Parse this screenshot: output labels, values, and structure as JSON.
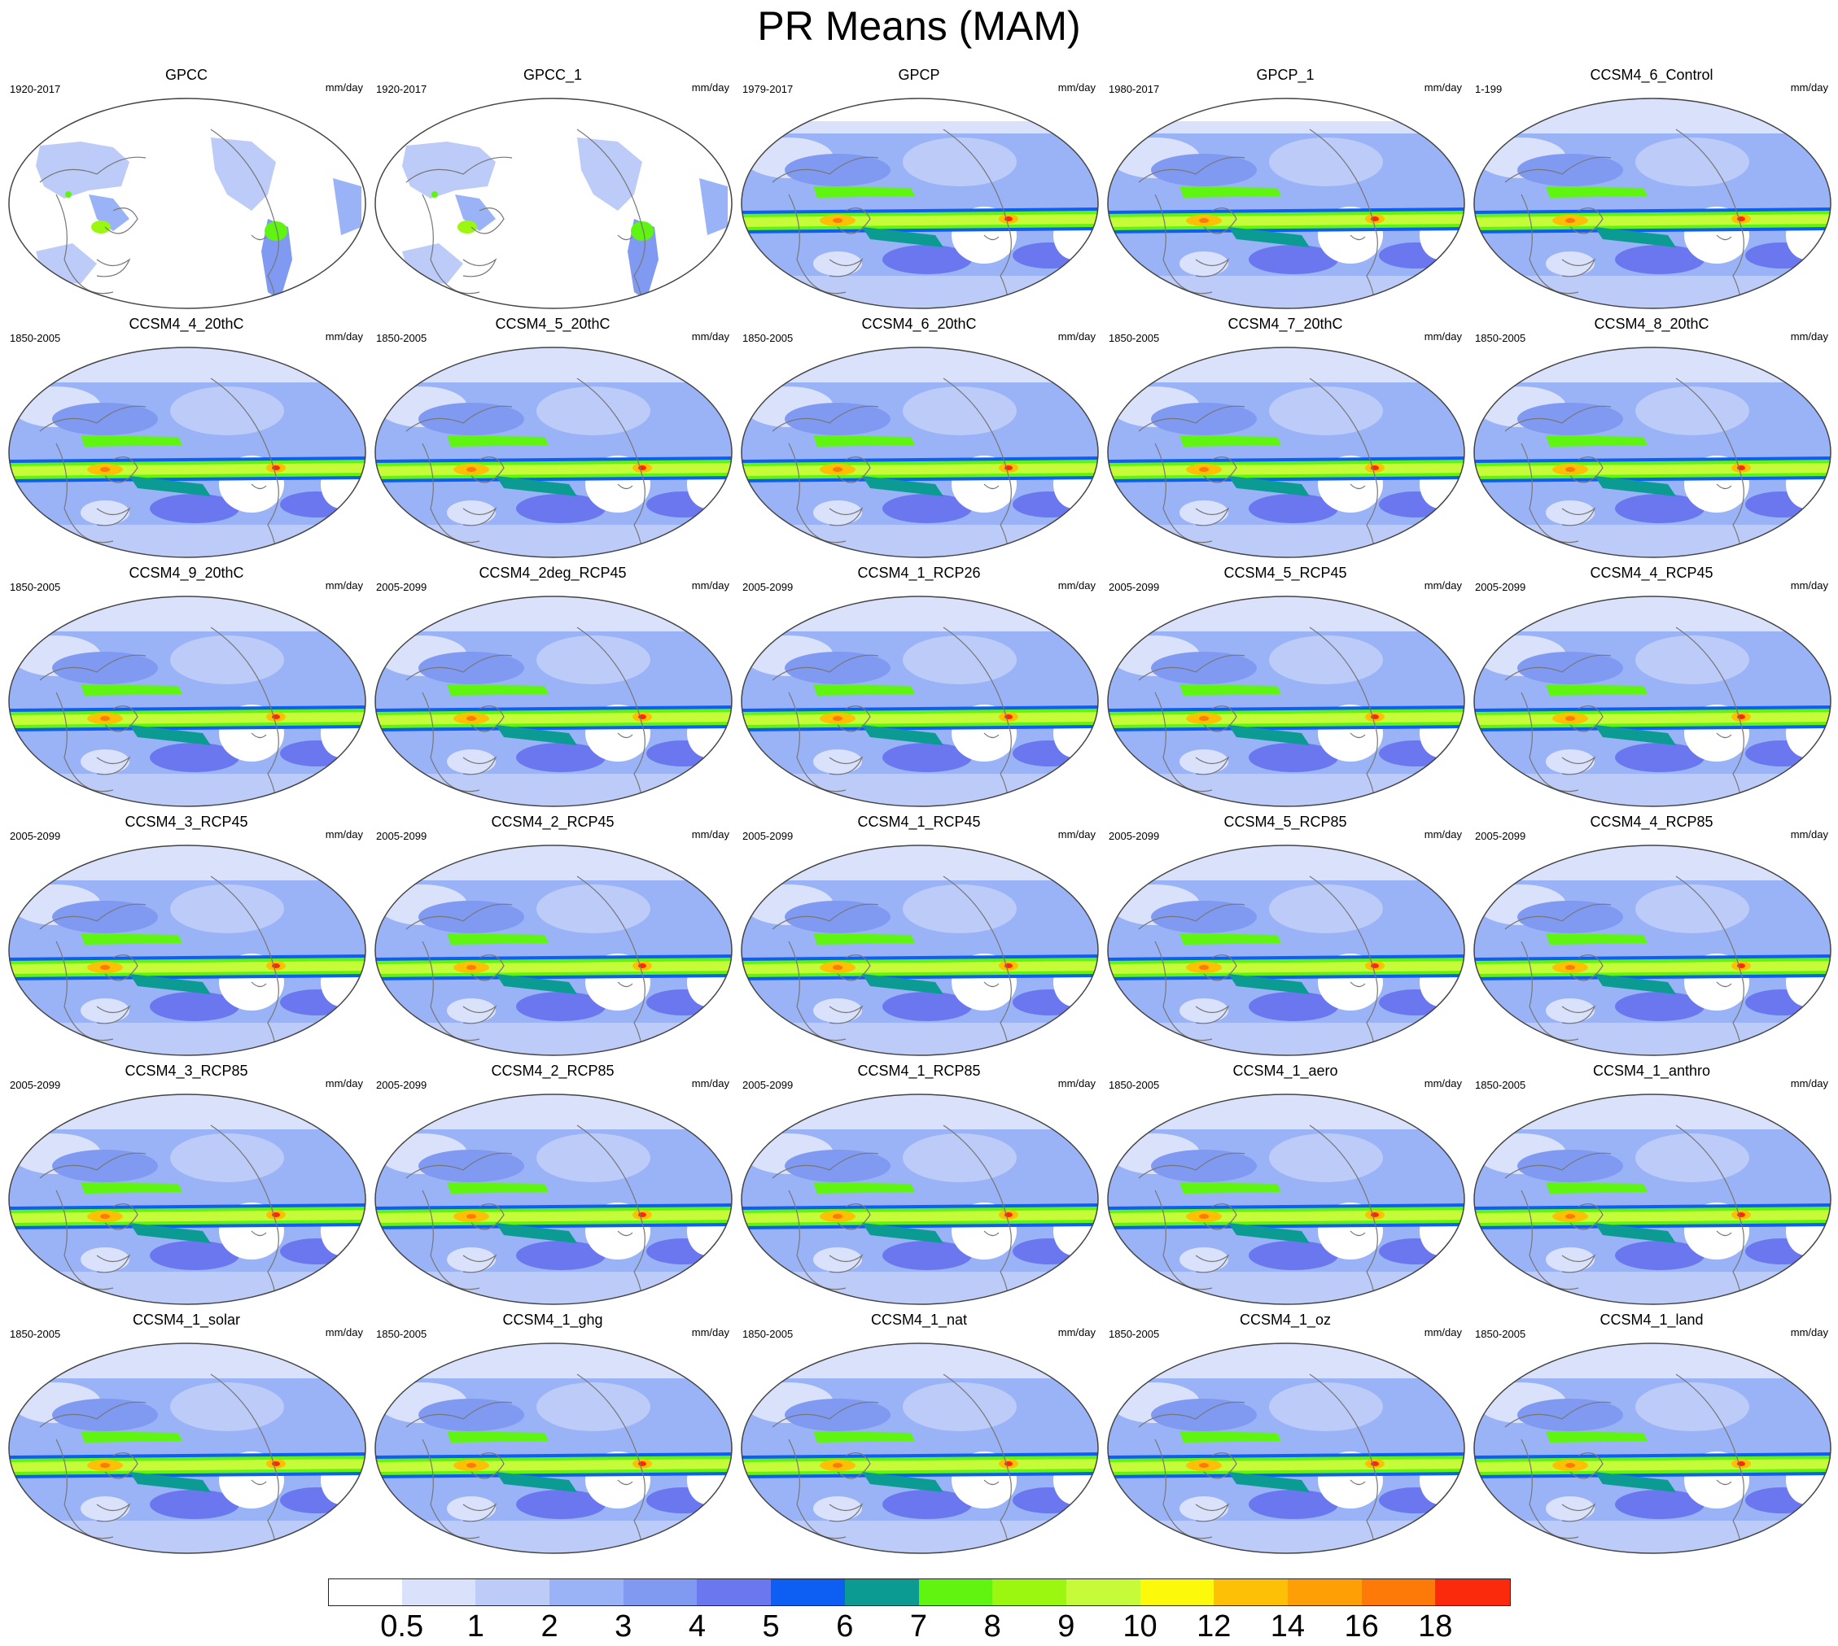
{
  "title": "PR Means (MAM)",
  "panels": [
    {
      "name": "GPCC",
      "period": "1920-2017",
      "units": "mm/day",
      "type": "land"
    },
    {
      "name": "GPCC_1",
      "period": "1920-2017",
      "units": "mm/day",
      "type": "land"
    },
    {
      "name": "GPCP",
      "period": "1979-2017",
      "units": "mm/day",
      "type": "obs"
    },
    {
      "name": "GPCP_1",
      "period": "1980-2017",
      "units": "mm/day",
      "type": "obs"
    },
    {
      "name": "CCSM4_6_Control",
      "period": "1-199",
      "units": "mm/day",
      "type": "model"
    },
    {
      "name": "CCSM4_4_20thC",
      "period": "1850-2005",
      "units": "mm/day",
      "type": "model"
    },
    {
      "name": "CCSM4_5_20thC",
      "period": "1850-2005",
      "units": "mm/day",
      "type": "model"
    },
    {
      "name": "CCSM4_6_20thC",
      "period": "1850-2005",
      "units": "mm/day",
      "type": "model"
    },
    {
      "name": "CCSM4_7_20thC",
      "period": "1850-2005",
      "units": "mm/day",
      "type": "model"
    },
    {
      "name": "CCSM4_8_20thC",
      "period": "1850-2005",
      "units": "mm/day",
      "type": "model"
    },
    {
      "name": "CCSM4_9_20thC",
      "period": "1850-2005",
      "units": "mm/day",
      "type": "model"
    },
    {
      "name": "CCSM4_2deg_RCP45",
      "period": "2005-2099",
      "units": "mm/day",
      "type": "model"
    },
    {
      "name": "CCSM4_1_RCP26",
      "period": "2005-2099",
      "units": "mm/day",
      "type": "model"
    },
    {
      "name": "CCSM4_5_RCP45",
      "period": "2005-2099",
      "units": "mm/day",
      "type": "model"
    },
    {
      "name": "CCSM4_4_RCP45",
      "period": "2005-2099",
      "units": "mm/day",
      "type": "model"
    },
    {
      "name": "CCSM4_3_RCP45",
      "period": "2005-2099",
      "units": "mm/day",
      "type": "model"
    },
    {
      "name": "CCSM4_2_RCP45",
      "period": "2005-2099",
      "units": "mm/day",
      "type": "model"
    },
    {
      "name": "CCSM4_1_RCP45",
      "period": "2005-2099",
      "units": "mm/day",
      "type": "model"
    },
    {
      "name": "CCSM4_5_RCP85",
      "period": "2005-2099",
      "units": "mm/day",
      "type": "model"
    },
    {
      "name": "CCSM4_4_RCP85",
      "period": "2005-2099",
      "units": "mm/day",
      "type": "model"
    },
    {
      "name": "CCSM4_3_RCP85",
      "period": "2005-2099",
      "units": "mm/day",
      "type": "model"
    },
    {
      "name": "CCSM4_2_RCP85",
      "period": "2005-2099",
      "units": "mm/day",
      "type": "model"
    },
    {
      "name": "CCSM4_1_RCP85",
      "period": "2005-2099",
      "units": "mm/day",
      "type": "model"
    },
    {
      "name": "CCSM4_1_aero",
      "period": "1850-2005",
      "units": "mm/day",
      "type": "model"
    },
    {
      "name": "CCSM4_1_anthro",
      "period": "1850-2005",
      "units": "mm/day",
      "type": "model"
    },
    {
      "name": "CCSM4_1_solar",
      "period": "1850-2005",
      "units": "mm/day",
      "type": "model"
    },
    {
      "name": "CCSM4_1_ghg",
      "period": "1850-2005",
      "units": "mm/day",
      "type": "model"
    },
    {
      "name": "CCSM4_1_nat",
      "period": "1850-2005",
      "units": "mm/day",
      "type": "model"
    },
    {
      "name": "CCSM4_1_oz",
      "period": "1850-2005",
      "units": "mm/day",
      "type": "model"
    },
    {
      "name": "CCSM4_1_land",
      "period": "1850-2005",
      "units": "mm/day",
      "type": "model"
    }
  ],
  "colorbar": {
    "levels": [
      "0.5",
      "1",
      "2",
      "3",
      "4",
      "5",
      "6",
      "7",
      "8",
      "9",
      "10",
      "12",
      "14",
      "16",
      "18"
    ],
    "colors": [
      "#ffffff",
      "#dae1fb",
      "#bccbf8",
      "#99b3f6",
      "#8099f1",
      "#6a77ef",
      "#0d5ff3",
      "#0c9b93",
      "#5ff510",
      "#9bf70f",
      "#c6fb3a",
      "#fcfa0a",
      "#fec006",
      "#fe9f06",
      "#fd7a08",
      "#fc2a0d"
    ]
  }
}
